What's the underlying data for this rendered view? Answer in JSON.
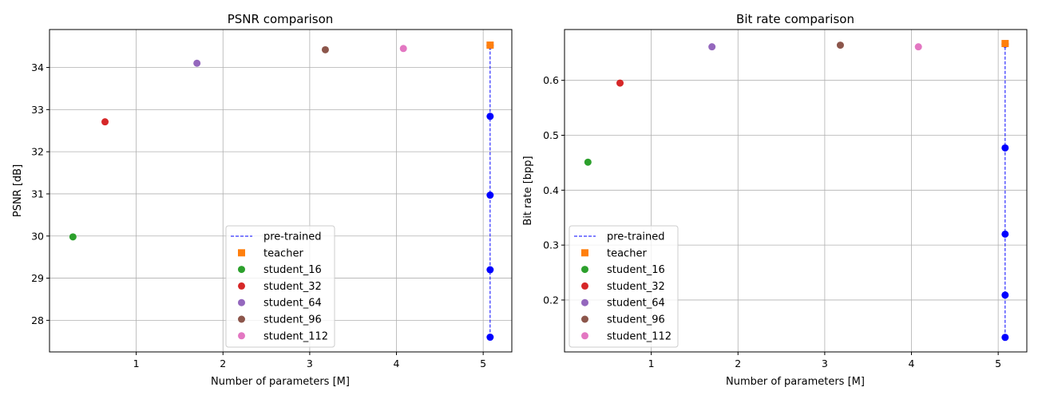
{
  "chart_data": [
    {
      "type": "scatter",
      "title": "PSNR comparison",
      "xlabel": "Number of parameters [M]",
      "ylabel": "PSNR [dB]",
      "xlim": [
        0.0,
        5.33
      ],
      "ylim": [
        27.25,
        34.9
      ],
      "xticks": [
        1,
        2,
        3,
        4,
        5
      ],
      "yticks": [
        28,
        29,
        30,
        31,
        32,
        33,
        34
      ],
      "grid": true,
      "legend_position": "lower-center",
      "series": [
        {
          "name": "pre-trained",
          "marker": "line-dot",
          "color": "#0000ff",
          "x": [
            5.08,
            5.08,
            5.08,
            5.08,
            5.08
          ],
          "y": [
            27.6,
            29.2,
            30.97,
            32.84,
            34.52
          ]
        },
        {
          "name": "teacher",
          "marker": "square",
          "color": "#ff7f0e",
          "x": [
            5.08
          ],
          "y": [
            34.53
          ]
        },
        {
          "name": "student_16",
          "marker": "circle",
          "color": "#2ca02c",
          "x": [
            0.27
          ],
          "y": [
            29.98
          ]
        },
        {
          "name": "student_32",
          "marker": "circle",
          "color": "#d62728",
          "x": [
            0.64
          ],
          "y": [
            32.71
          ]
        },
        {
          "name": "student_64",
          "marker": "circle",
          "color": "#9467bd",
          "x": [
            1.7
          ],
          "y": [
            34.1
          ]
        },
        {
          "name": "student_96",
          "marker": "circle",
          "color": "#8c564b",
          "x": [
            3.18
          ],
          "y": [
            34.42
          ]
        },
        {
          "name": "student_112",
          "marker": "circle",
          "color": "#e377c2",
          "x": [
            4.08
          ],
          "y": [
            34.45
          ]
        }
      ]
    },
    {
      "type": "scatter",
      "title": "Bit rate comparison",
      "xlabel": "Number of parameters [M]",
      "ylabel": "Bit rate [bpp]",
      "xlim": [
        0.0,
        5.33
      ],
      "ylim": [
        0.1055,
        0.6925
      ],
      "xticks": [
        1,
        2,
        3,
        4,
        5
      ],
      "yticks": [
        0.2,
        0.3,
        0.4,
        0.5,
        0.6
      ],
      "grid": true,
      "legend_position": "lower-left",
      "series": [
        {
          "name": "pre-trained",
          "marker": "line-dot",
          "color": "#0000ff",
          "x": [
            5.08,
            5.08,
            5.08,
            5.08,
            5.08
          ],
          "y": [
            0.132,
            0.209,
            0.32,
            0.477,
            0.666
          ]
        },
        {
          "name": "teacher",
          "marker": "square",
          "color": "#ff7f0e",
          "x": [
            5.08
          ],
          "y": [
            0.667
          ]
        },
        {
          "name": "student_16",
          "marker": "circle",
          "color": "#2ca02c",
          "x": [
            0.27
          ],
          "y": [
            0.451
          ]
        },
        {
          "name": "student_32",
          "marker": "circle",
          "color": "#d62728",
          "x": [
            0.64
          ],
          "y": [
            0.595
          ]
        },
        {
          "name": "student_64",
          "marker": "circle",
          "color": "#9467bd",
          "x": [
            1.7
          ],
          "y": [
            0.661
          ]
        },
        {
          "name": "student_96",
          "marker": "circle",
          "color": "#8c564b",
          "x": [
            3.18
          ],
          "y": [
            0.664
          ]
        },
        {
          "name": "student_112",
          "marker": "circle",
          "color": "#e377c2",
          "x": [
            4.08
          ],
          "y": [
            0.661
          ]
        }
      ]
    }
  ]
}
